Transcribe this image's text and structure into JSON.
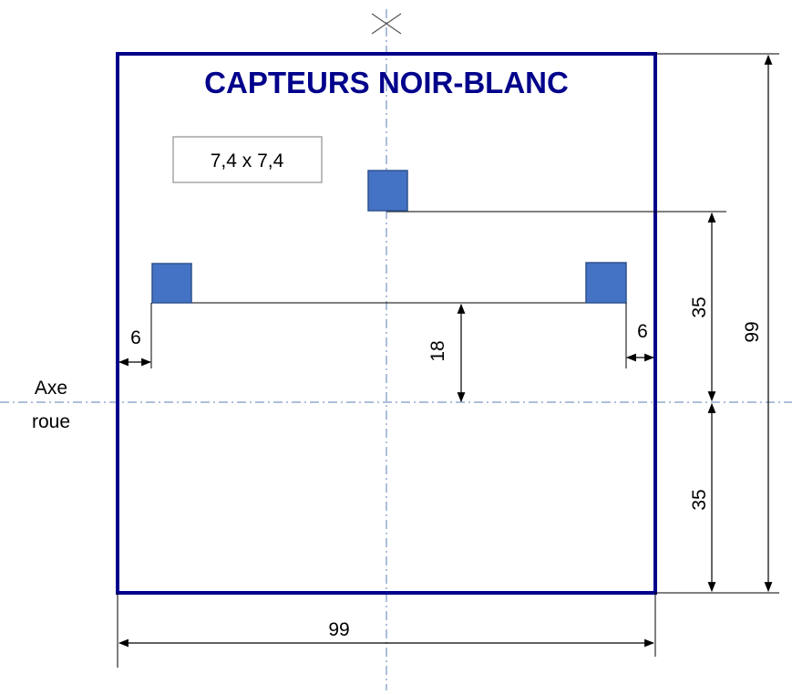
{
  "title": "CAPTEURS NOIR-BLANC",
  "sensor_size_label": "7,4 x 7,4",
  "axis_label": {
    "line1": "Axe",
    "line2": "roue"
  },
  "dimensions": {
    "left_offset": "6",
    "right_offset": "6",
    "sensor_line_to_axis": "18",
    "front_sensor_to_axis": "35",
    "axis_to_bottom": "35",
    "total_height": "99",
    "total_width": "99"
  },
  "colors": {
    "frame": "#00008b",
    "title": "#00008b",
    "sensor_fill": "#4472c4",
    "sensor_stroke": "#2f528f",
    "centerline": "#5b7fb5",
    "size_box_border": "#a6a6a6"
  },
  "icons": {
    "center_mark": "cross-icon",
    "arrowhead": "arrowhead-icon"
  }
}
